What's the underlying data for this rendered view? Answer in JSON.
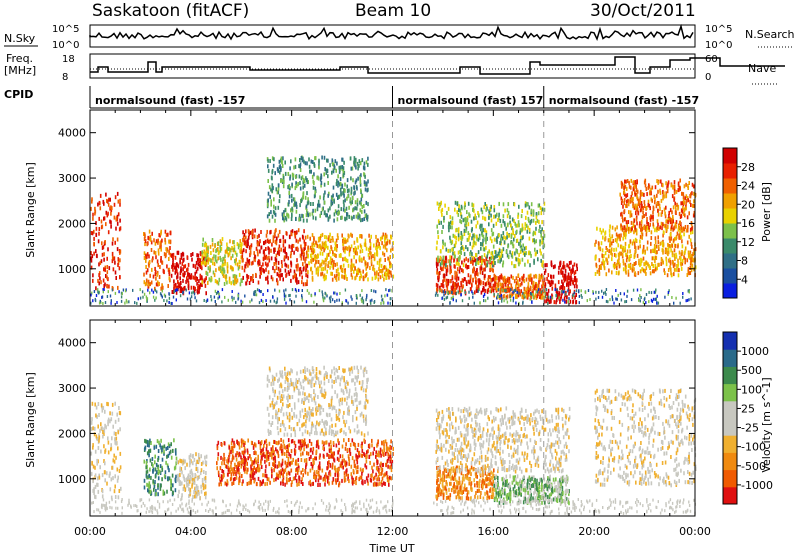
{
  "header": {
    "station": "Saskatoon (fitACF)",
    "beam": "Beam 10",
    "date": "30/Oct/2011"
  },
  "side_labels": {
    "nsky": "N.Sky",
    "nsky_top": "10^5",
    "nsky_bottom": "10^0",
    "nsearch": "N.Search",
    "nsearch_top": "10^5",
    "nsearch_bottom": "10^0",
    "freq": "Freq.",
    "freq_unit": "[MHz]",
    "freq_top": "18",
    "freq_bottom": "8",
    "nave": "Nave",
    "nave_top": "60",
    "nave_bottom": "0",
    "cpid": "CPID"
  },
  "cpid_segments": [
    {
      "label": "normalsound (fast) -157",
      "start_h": 0
    },
    {
      "label": "normalsound (fast) 157",
      "start_h": 12.0
    },
    {
      "label": "normalsound (fast) -157",
      "start_h": 18.0
    }
  ],
  "colors": {
    "power": [
      "#0a1fe0",
      "#1a4fa0",
      "#2f6f86",
      "#3a8a6a",
      "#7cc04a",
      "#e8d100",
      "#f0a000",
      "#f06000",
      "#e82000",
      "#d00000"
    ],
    "velocity": [
      "#e01010",
      "#f05a00",
      "#f08a10",
      "#f0b030",
      "#c8c8c0",
      "#c8c8c0",
      "#7cc24a",
      "#3c8a4c",
      "#2a6a8a",
      "#1530b0"
    ]
  },
  "chart_data": [
    {
      "type": "heatmap",
      "title": "Power",
      "ylabel": "Slant Range [km]",
      "xlabel": "",
      "colorbar_label": "Power [dB]",
      "colorbar_ticks": [
        "4",
        "8",
        "12",
        "16",
        "20",
        "24",
        "28"
      ],
      "yticks": [
        "1000",
        "2000",
        "3000",
        "4000"
      ],
      "ylim": [
        180,
        4500
      ],
      "xlim_h": [
        0,
        24
      ],
      "scatter_regions": [
        {
          "t0": 0.0,
          "t1": 1.2,
          "r0": 600,
          "r1": 2700,
          "level": 8
        },
        {
          "t0": 2.1,
          "t1": 3.2,
          "r0": 600,
          "r1": 1900,
          "level": 7
        },
        {
          "t0": 3.2,
          "t1": 4.6,
          "r0": 500,
          "r1": 1400,
          "level": 9
        },
        {
          "t0": 4.4,
          "t1": 6.0,
          "r0": 700,
          "r1": 1700,
          "level": 5
        },
        {
          "t0": 6.0,
          "t1": 8.6,
          "r0": 700,
          "r1": 1900,
          "level": 8
        },
        {
          "t0": 8.6,
          "t1": 12.0,
          "r0": 800,
          "r1": 1800,
          "level": 6
        },
        {
          "t0": 7.0,
          "t1": 11.0,
          "r0": 2100,
          "r1": 3500,
          "level": 3
        },
        {
          "t0": 13.7,
          "t1": 16.0,
          "r0": 500,
          "r1": 1300,
          "level": 8
        },
        {
          "t0": 13.7,
          "t1": 18.0,
          "r0": 1100,
          "r1": 2500,
          "level": 4
        },
        {
          "t0": 16.0,
          "t1": 18.0,
          "r0": 400,
          "r1": 900,
          "level": 7
        },
        {
          "t0": 18.0,
          "t1": 19.3,
          "r0": 300,
          "r1": 1200,
          "level": 9
        },
        {
          "t0": 20.0,
          "t1": 24.0,
          "r0": 900,
          "r1": 2000,
          "level": 6
        },
        {
          "t0": 21.0,
          "t1": 24.0,
          "r0": 1900,
          "r1": 3000,
          "level": 7
        }
      ]
    },
    {
      "type": "heatmap",
      "title": "Velocity",
      "ylabel": "Slant Range [km]",
      "xlabel": "Time UT",
      "colorbar_label": "Velocity [m s^-1]",
      "colorbar_ticks": [
        "-1000",
        "-500",
        "-100",
        "-25",
        "25",
        "100",
        "500",
        "1000"
      ],
      "xticks": [
        "00:00",
        "04:00",
        "08:00",
        "12:00",
        "16:00",
        "20:00",
        "00:00"
      ],
      "yticks": [
        "1000",
        "2000",
        "3000",
        "4000"
      ],
      "ylim": [
        180,
        4500
      ],
      "xlim_h": [
        0,
        24
      ],
      "scatter_regions": [
        {
          "t0": 0.0,
          "t1": 1.2,
          "r0": 600,
          "r1": 2700,
          "level": 4
        },
        {
          "t0": 2.1,
          "t1": 3.4,
          "r0": 700,
          "r1": 1900,
          "level": 7
        },
        {
          "t0": 3.4,
          "t1": 4.6,
          "r0": 600,
          "r1": 1600,
          "level": 4
        },
        {
          "t0": 5.0,
          "t1": 12.0,
          "r0": 900,
          "r1": 1900,
          "level": 1
        },
        {
          "t0": 7.0,
          "t1": 11.0,
          "r0": 2000,
          "r1": 3500,
          "level": 4
        },
        {
          "t0": 13.7,
          "t1": 16.0,
          "r0": 600,
          "r1": 1300,
          "level": 2
        },
        {
          "t0": 13.7,
          "t1": 19.0,
          "r0": 1200,
          "r1": 2600,
          "level": 4
        },
        {
          "t0": 16.0,
          "t1": 19.0,
          "r0": 500,
          "r1": 1100,
          "level": 6
        },
        {
          "t0": 20.0,
          "t1": 24.0,
          "r0": 900,
          "r1": 3000,
          "level": 4
        }
      ]
    }
  ]
}
